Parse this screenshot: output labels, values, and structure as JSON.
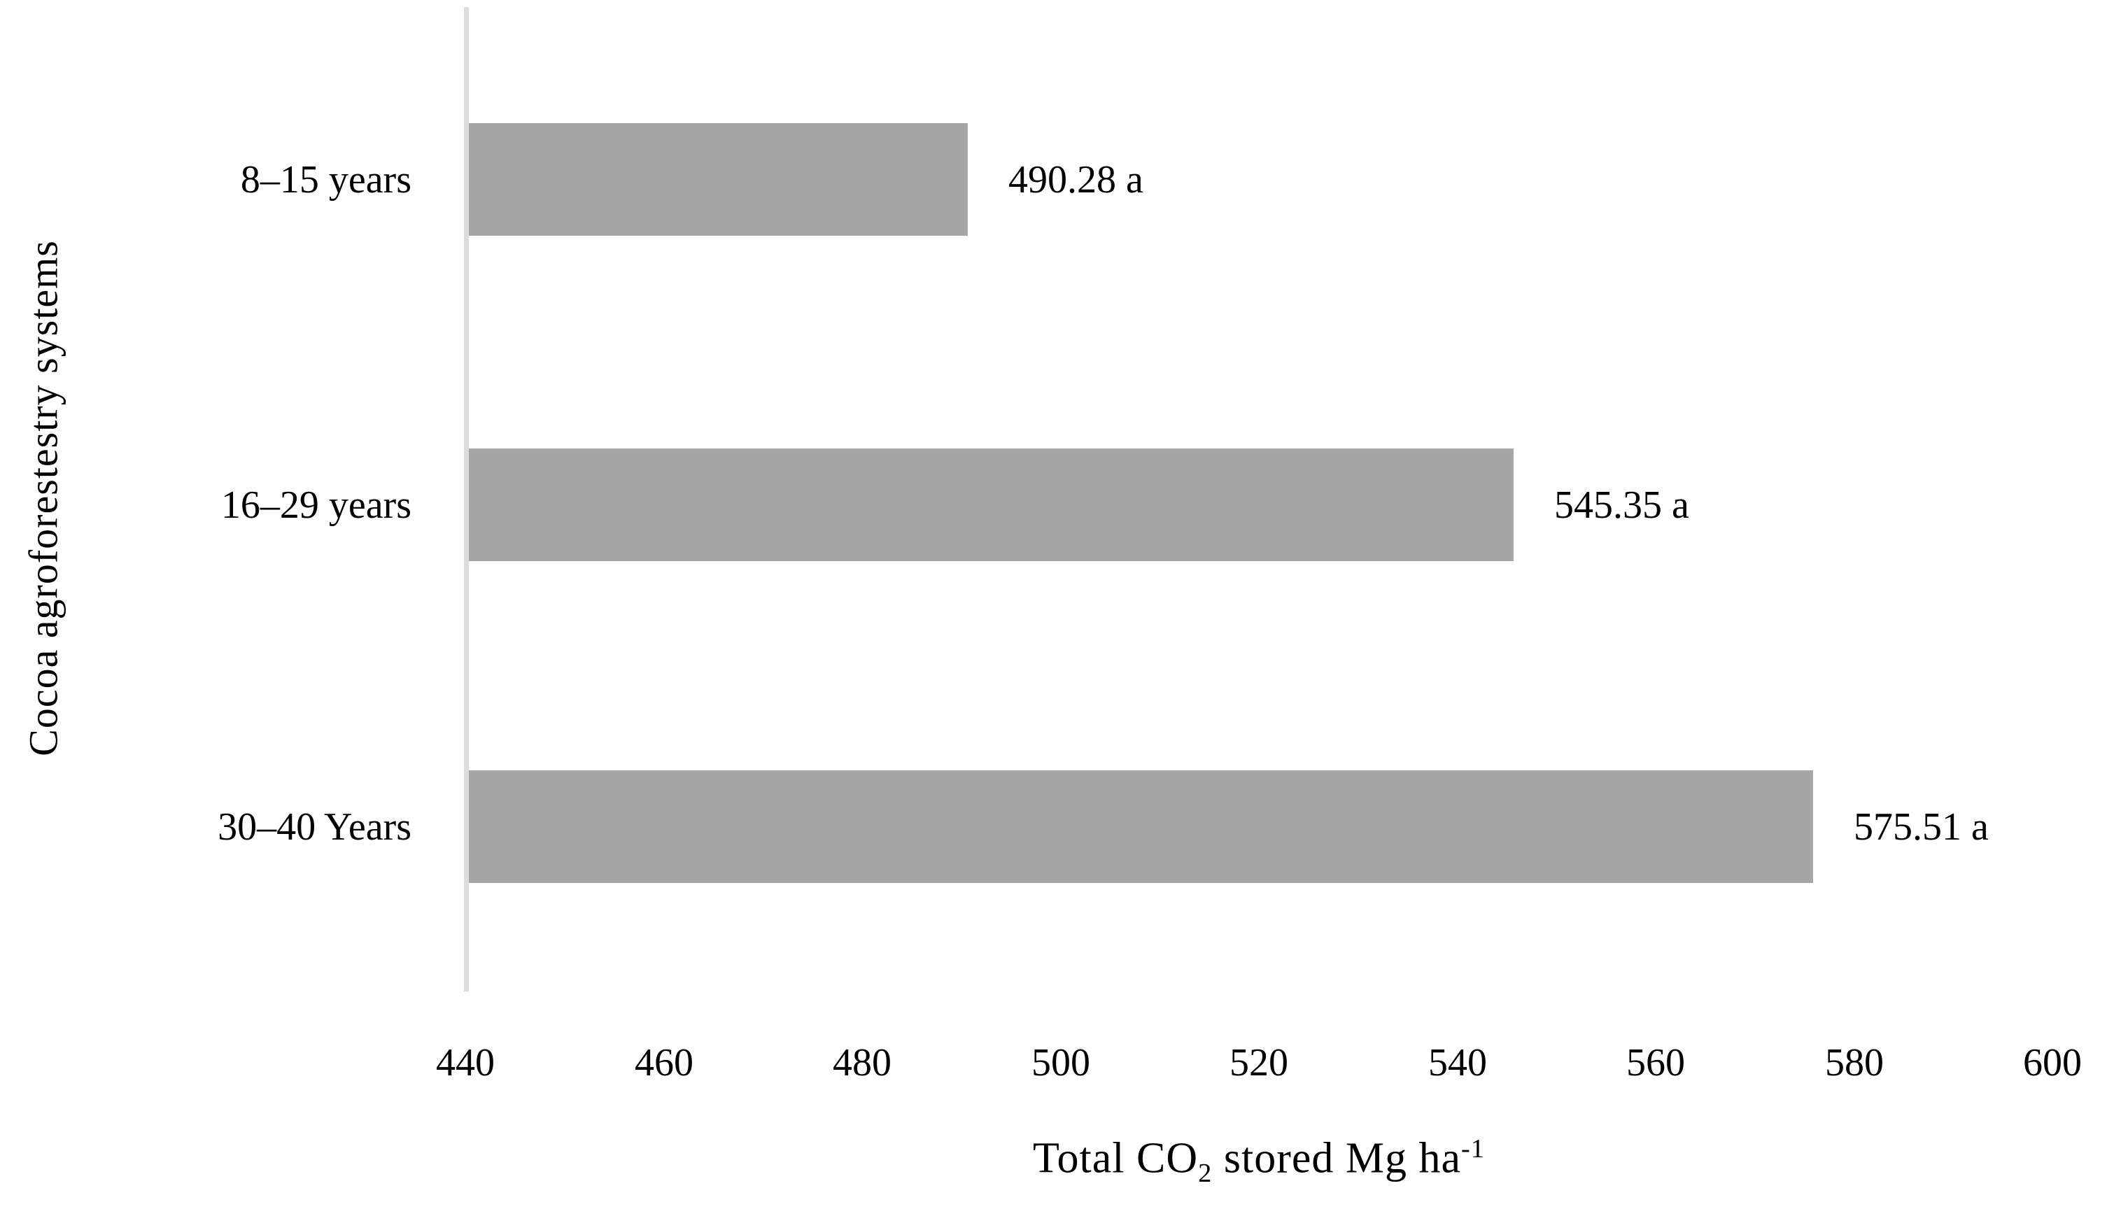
{
  "figure": {
    "background": "#ffffff",
    "text_color": "#000000",
    "bar_color": "#a6a6a6",
    "axis_line_color": "#dcdcdc"
  },
  "x_axis_title": {
    "pre": "Total CO",
    "sub": "2",
    "mid": " stored Mg ha",
    "sup": "-1"
  },
  "chart_data": {
    "type": "bar",
    "orientation": "horizontal",
    "title": "",
    "xlabel": "Total CO₂ stored Mg ha⁻¹",
    "ylabel": "Cocoa agroforestestry systems",
    "categories": [
      "8–15 years",
      "16–29 years",
      "30–40 Years"
    ],
    "values": [
      490.28,
      545.35,
      575.51
    ],
    "data_labels": [
      "490.28 a",
      "545.35 a",
      "575.51 a"
    ],
    "significance_letters": [
      "a",
      "a",
      "a"
    ],
    "xlim": [
      440,
      600
    ],
    "xtick_step": 20,
    "xticks": [
      "440",
      "460",
      "480",
      "500",
      "520",
      "540",
      "560",
      "580",
      "600"
    ],
    "grid": false,
    "legend": false,
    "bar_color": "#a6a6a6"
  }
}
